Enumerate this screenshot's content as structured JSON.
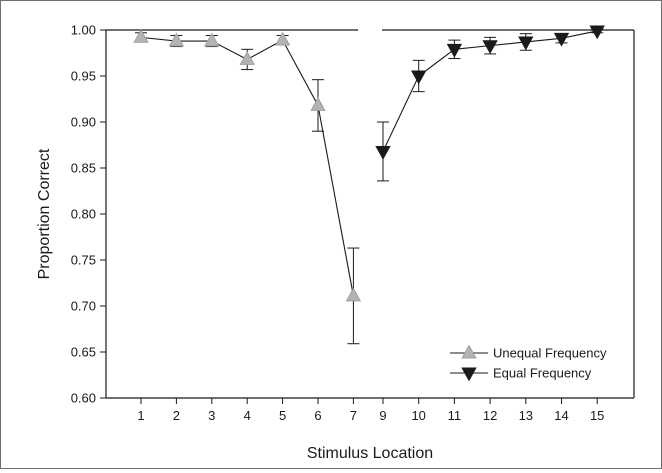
{
  "chart_data": {
    "type": "scatter",
    "xlabel": "Stimulus Location",
    "ylabel": "Proportion Correct",
    "ylim": [
      0.6,
      1.0
    ],
    "y_ticks": [
      "0.60",
      "0.65",
      "0.70",
      "0.75",
      "0.80",
      "0.85",
      "0.90",
      "0.95",
      "1.00"
    ],
    "x_ticks": [
      "1",
      "2",
      "3",
      "4",
      "5",
      "6",
      "7",
      "9",
      "10",
      "11",
      "12",
      "13",
      "14",
      "15"
    ],
    "axis_break_between": [
      7,
      9
    ],
    "grid": false,
    "legend_position": "bottom-right",
    "series": [
      {
        "name": "Unequal Frequency",
        "marker": "triangle-up",
        "color": "#b3b3b3",
        "x": [
          1,
          2,
          3,
          4,
          5,
          6,
          7
        ],
        "y": [
          0.992,
          0.988,
          0.988,
          0.968,
          0.989,
          0.918,
          0.711
        ],
        "error": [
          0.005,
          0.006,
          0.006,
          0.011,
          0.005,
          0.028,
          0.052
        ]
      },
      {
        "name": "Equal Frequency",
        "marker": "triangle-down",
        "color": "#1a1a1a",
        "x": [
          9,
          10,
          11,
          12,
          13,
          14,
          15
        ],
        "y": [
          0.868,
          0.95,
          0.979,
          0.983,
          0.987,
          0.991,
          0.999
        ],
        "error": [
          0.032,
          0.017,
          0.01,
          0.009,
          0.009,
          0.005,
          0.002
        ]
      }
    ]
  }
}
